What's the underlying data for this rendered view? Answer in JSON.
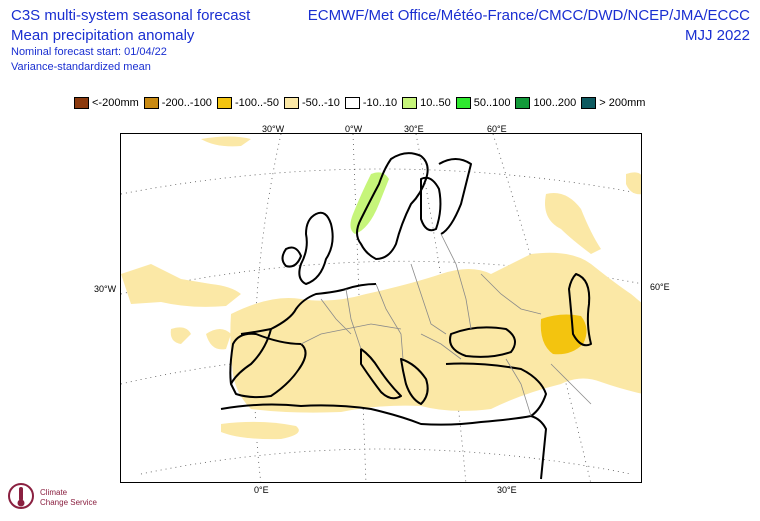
{
  "header": {
    "title_line1": "C3S multi-system seasonal forecast",
    "title_line2": "Mean precipitation anomaly",
    "subtitle_line1": "Nominal forecast start: 01/04/22",
    "subtitle_line2": "Variance-standardized mean",
    "centres": "ECMWF/Met Office/Météo-France/CMCC/DWD/NCEP/JMA/ECCC",
    "season": "MJJ 2022"
  },
  "legend": [
    {
      "label": "<-200mm",
      "color": "#8b3a0e"
    },
    {
      "label": "-200..-100",
      "color": "#c98a12"
    },
    {
      "label": "-100..-50",
      "color": "#f3c40f"
    },
    {
      "label": "-50..-10",
      "color": "#fbe8a6"
    },
    {
      "label": "-10..10",
      "color": "#ffffff"
    },
    {
      "label": "10..50",
      "color": "#c6f57a"
    },
    {
      "label": "50..100",
      "color": "#2ee82e"
    },
    {
      "label": "100..200",
      "color": "#139a3a"
    },
    {
      "label": "> 200mm",
      "color": "#0e5a60"
    }
  ],
  "map": {
    "top_ticks": [
      "30°W",
      "0°W",
      "30°E",
      "60°E"
    ],
    "left_tick": "30°W",
    "right_tick": "60°E",
    "bottom_ticks": [
      "0°E",
      "30°E"
    ]
  },
  "logo": {
    "line1": "Climate",
    "line2": "Change Service"
  }
}
